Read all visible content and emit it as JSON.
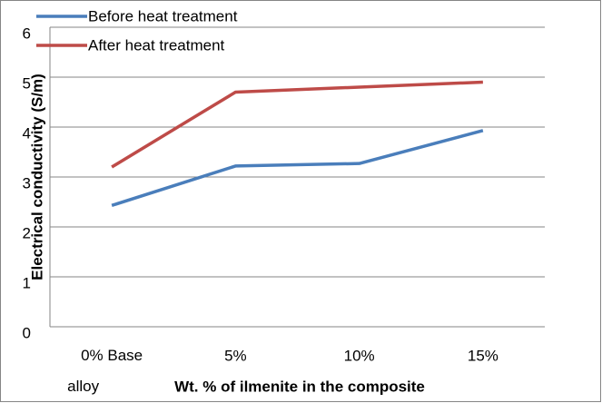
{
  "chart_data": {
    "type": "line",
    "x_label": "Wt. % of ilmenite in the composite",
    "y_label": "Electrical conductivity  (S/m)",
    "categories": [
      "0% Base alloy",
      "5%",
      "10%",
      "15%"
    ],
    "series": [
      {
        "name": "Before heat treatment",
        "color": "#4a7ebb",
        "values": [
          2.43,
          3.22,
          3.27,
          3.93
        ]
      },
      {
        "name": "After heat treatment",
        "color": "#be4b48",
        "values": [
          3.2,
          4.7,
          4.8,
          4.9
        ]
      }
    ],
    "ylim": [
      0,
      6
    ],
    "yticks": [
      0,
      1,
      2,
      3,
      4,
      5,
      6
    ],
    "grid": true,
    "legend": "top-left"
  }
}
